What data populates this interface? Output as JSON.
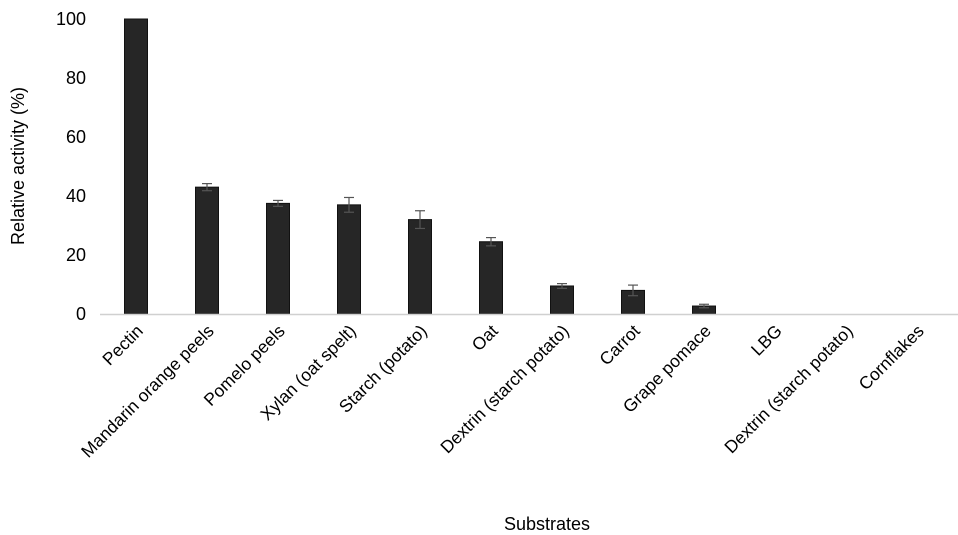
{
  "chart_data": {
    "type": "bar",
    "title": "",
    "xlabel": "Substrates",
    "ylabel": "Relative activity (%)",
    "ylim": [
      0,
      100
    ],
    "yticks": [
      0,
      20,
      40,
      60,
      80,
      100
    ],
    "grid": false,
    "legend": "none",
    "bar_color": "#262626",
    "error_color": "#555555",
    "categories": [
      "Pectin",
      "Mandarin orange peels",
      "Pomelo peels",
      "Xylan (oat spelt)",
      "Starch (potato)",
      "Oat",
      "Dextrin (starch potato)",
      "Carrot",
      "Grape pomace",
      "LBG",
      "Dextrin (starch potato)",
      "Cornflakes"
    ],
    "values": [
      100,
      43,
      37.5,
      37,
      32,
      24.5,
      9.5,
      8,
      2.7,
      0,
      0,
      0
    ],
    "errors": [
      0,
      1.2,
      1,
      2.5,
      3,
      1.4,
      0.8,
      1.8,
      0.6,
      0,
      0,
      0
    ]
  }
}
